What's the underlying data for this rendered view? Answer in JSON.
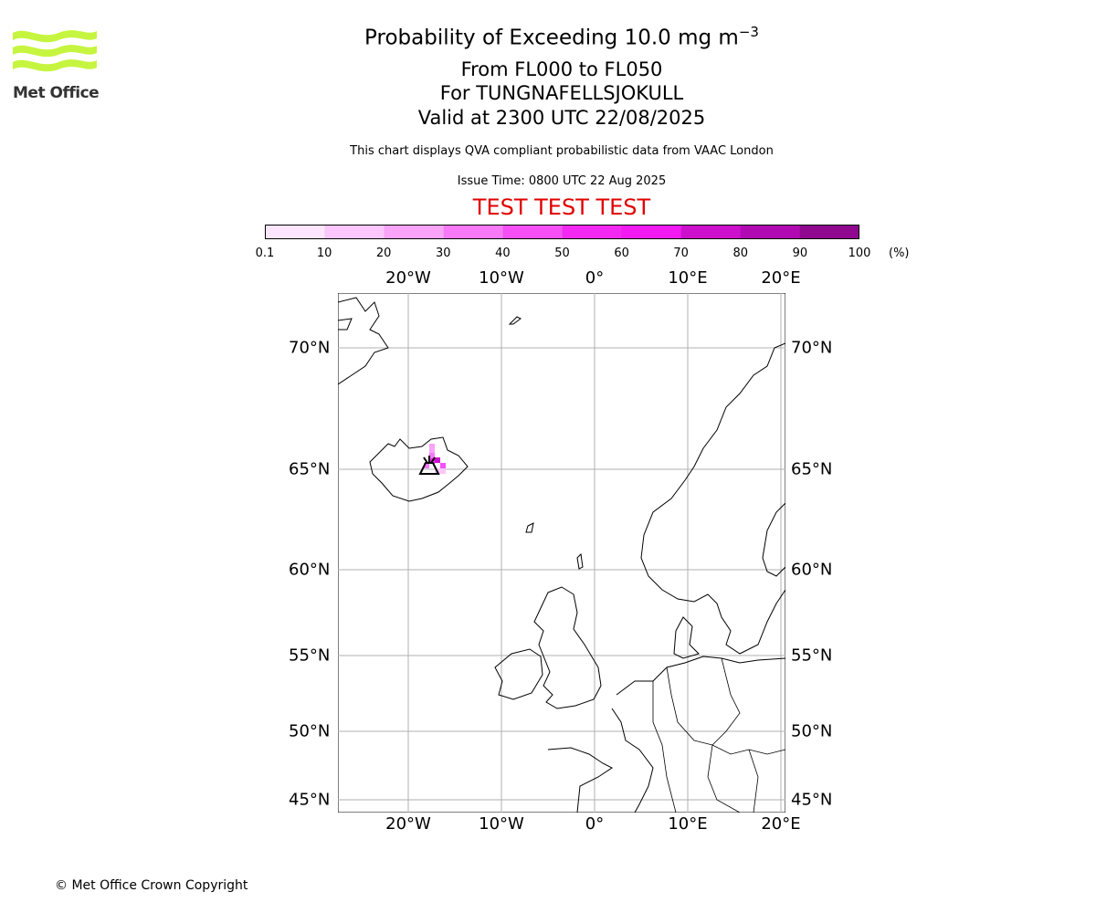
{
  "branding": {
    "logo_text": "Met Office",
    "logo_color": "#c6f53f"
  },
  "header": {
    "title": "Probability of Exceeding 10.0 mg m",
    "title_superscript": "−3",
    "levels": "From FL000 to FL050",
    "location": "For TUNGNAFELLSJOKULL",
    "valid": "Valid at 2300 UTC 22/08/2025",
    "description": "This chart displays QVA compliant probabilistic data from VAAC London",
    "issue_time": "Issue Time: 0800 UTC 22 Aug 2025",
    "test_banner": "TEST TEST TEST",
    "test_banner_color": "#e00000"
  },
  "colorbar": {
    "ticks": [
      "0.1",
      "10",
      "20",
      "30",
      "40",
      "50",
      "60",
      "70",
      "80",
      "90",
      "100"
    ],
    "unit": "(%)",
    "colors": [
      "#fde6fd",
      "#fbc6fb",
      "#f9a3f9",
      "#f779f7",
      "#f54ff5",
      "#f329f3",
      "#f319f3",
      "#cc10cc",
      "#b20ab2",
      "#8f088f",
      "#660466"
    ]
  },
  "map": {
    "lon_labels": [
      "20°W",
      "10°W",
      "0°",
      "10°E",
      "20°E"
    ],
    "lon_values": [
      -20,
      -10,
      0,
      10,
      20
    ],
    "lat_labels": [
      "70°N",
      "65°N",
      "60°N",
      "55°N",
      "50°N",
      "45°N"
    ],
    "lat_values": [
      70,
      65,
      60,
      55,
      50,
      45
    ],
    "volcano_marker": "volcano-icon",
    "grid": true
  },
  "footer": {
    "copyright": "© Met Office Crown Copyright"
  }
}
